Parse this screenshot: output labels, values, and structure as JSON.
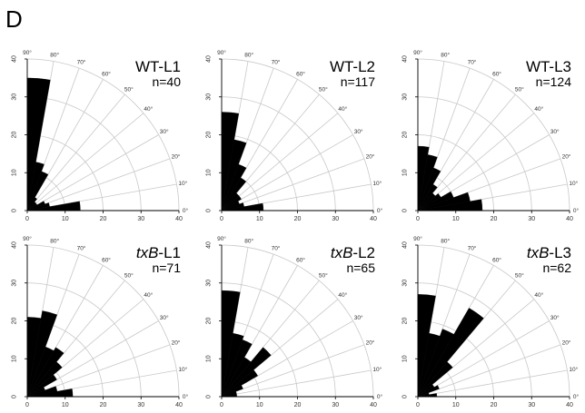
{
  "figure_label": "D",
  "colors": {
    "bars": "#000000",
    "grid": "#c8c8c8",
    "axis": "#000000"
  },
  "chart_data": [
    {
      "type": "rose",
      "title_prefix": "",
      "title_suffix": "WT-L1",
      "n_label": "n=40",
      "angle_bin_deg": 10,
      "angle_ticks": [
        "0°",
        "10°",
        "20°",
        "30°",
        "40°",
        "50°",
        "60°",
        "70°",
        "80°",
        "90°"
      ],
      "radial_ticks": [
        "0",
        "10",
        "20",
        "30",
        "40"
      ],
      "rlim": [
        0,
        40
      ],
      "bins": [
        {
          "from": 0,
          "to": 10,
          "value": 14
        },
        {
          "from": 10,
          "to": 20,
          "value": 6
        },
        {
          "from": 20,
          "to": 30,
          "value": 5
        },
        {
          "from": 30,
          "to": 40,
          "value": 3
        },
        {
          "from": 40,
          "to": 50,
          "value": 3
        },
        {
          "from": 50,
          "to": 60,
          "value": 4
        },
        {
          "from": 60,
          "to": 70,
          "value": 11
        },
        {
          "from": 70,
          "to": 80,
          "value": 13
        },
        {
          "from": 80,
          "to": 90,
          "value": 35
        }
      ]
    },
    {
      "type": "rose",
      "title_prefix": "",
      "title_suffix": "WT-L2",
      "n_label": "n=117",
      "angle_bin_deg": 10,
      "angle_ticks": [
        "0°",
        "10°",
        "20°",
        "30°",
        "40°",
        "50°",
        "60°",
        "70°",
        "80°",
        "90°"
      ],
      "radial_ticks": [
        "0",
        "10",
        "20",
        "30",
        "40"
      ],
      "rlim": [
        0,
        40
      ],
      "bins": [
        {
          "from": 0,
          "to": 10,
          "value": 11
        },
        {
          "from": 10,
          "to": 20,
          "value": 6
        },
        {
          "from": 20,
          "to": 30,
          "value": 5
        },
        {
          "from": 30,
          "to": 40,
          "value": 6
        },
        {
          "from": 40,
          "to": 50,
          "value": 6
        },
        {
          "from": 50,
          "to": 60,
          "value": 10
        },
        {
          "from": 60,
          "to": 70,
          "value": 13
        },
        {
          "from": 70,
          "to": 80,
          "value": 19
        },
        {
          "from": 80,
          "to": 90,
          "value": 26
        }
      ]
    },
    {
      "type": "rose",
      "title_prefix": "",
      "title_suffix": "WT-L3",
      "n_label": "n=124",
      "angle_bin_deg": 10,
      "angle_ticks": [
        "0°",
        "10°",
        "20°",
        "30°",
        "40°",
        "50°",
        "60°",
        "70°",
        "80°",
        "90°"
      ],
      "radial_ticks": [
        "0",
        "10",
        "20",
        "30",
        "40"
      ],
      "rlim": [
        0,
        40
      ],
      "bins": [
        {
          "from": 0,
          "to": 10,
          "value": 17
        },
        {
          "from": 10,
          "to": 20,
          "value": 14
        },
        {
          "from": 20,
          "to": 30,
          "value": 10
        },
        {
          "from": 30,
          "to": 40,
          "value": 7
        },
        {
          "from": 40,
          "to": 50,
          "value": 6
        },
        {
          "from": 50,
          "to": 60,
          "value": 8
        },
        {
          "from": 60,
          "to": 70,
          "value": 12
        },
        {
          "from": 70,
          "to": 80,
          "value": 15
        },
        {
          "from": 80,
          "to": 90,
          "value": 17
        }
      ]
    },
    {
      "type": "rose",
      "title_prefix": "txB",
      "title_suffix": "-L1",
      "n_label": "n=71",
      "angle_bin_deg": 10,
      "angle_ticks": [
        "0°",
        "10°",
        "20°",
        "30°",
        "40°",
        "50°",
        "60°",
        "70°",
        "80°",
        "90°"
      ],
      "radial_ticks": [
        "0",
        "10",
        "20",
        "30",
        "40"
      ],
      "rlim": [
        0,
        40
      ],
      "bins": [
        {
          "from": 0,
          "to": 10,
          "value": 12
        },
        {
          "from": 10,
          "to": 20,
          "value": 8
        },
        {
          "from": 20,
          "to": 30,
          "value": 5
        },
        {
          "from": 30,
          "to": 40,
          "value": 9
        },
        {
          "from": 40,
          "to": 50,
          "value": 12
        },
        {
          "from": 50,
          "to": 60,
          "value": 15
        },
        {
          "from": 60,
          "to": 70,
          "value": 14
        },
        {
          "from": 70,
          "to": 80,
          "value": 23
        },
        {
          "from": 80,
          "to": 90,
          "value": 21
        }
      ]
    },
    {
      "type": "rose",
      "title_prefix": "txB",
      "title_suffix": "-L2",
      "n_label": "n=65",
      "angle_bin_deg": 10,
      "angle_ticks": [
        "0°",
        "10°",
        "20°",
        "30°",
        "40°",
        "50°",
        "60°",
        "70°",
        "80°",
        "90°"
      ],
      "radial_ticks": [
        "0",
        "10",
        "20",
        "30",
        "40"
      ],
      "rlim": [
        0,
        40
      ],
      "bins": [
        {
          "from": 0,
          "to": 10,
          "value": 4
        },
        {
          "from": 10,
          "to": 20,
          "value": 4
        },
        {
          "from": 20,
          "to": 30,
          "value": 6
        },
        {
          "from": 30,
          "to": 40,
          "value": 11
        },
        {
          "from": 40,
          "to": 50,
          "value": 17
        },
        {
          "from": 50,
          "to": 60,
          "value": 12
        },
        {
          "from": 60,
          "to": 70,
          "value": 16
        },
        {
          "from": 70,
          "to": 80,
          "value": 17
        },
        {
          "from": 80,
          "to": 90,
          "value": 28
        }
      ]
    },
    {
      "type": "rose",
      "title_prefix": "txB",
      "title_suffix": "-L3",
      "n_label": "n=62",
      "angle_bin_deg": 10,
      "angle_ticks": [
        "0°",
        "10°",
        "20°",
        "30°",
        "40°",
        "50°",
        "60°",
        "70°",
        "80°",
        "90°"
      ],
      "radial_ticks": [
        "0",
        "10",
        "20",
        "30",
        "40"
      ],
      "rlim": [
        0,
        40
      ],
      "bins": [
        {
          "from": 0,
          "to": 10,
          "value": 5
        },
        {
          "from": 10,
          "to": 20,
          "value": 3
        },
        {
          "from": 20,
          "to": 30,
          "value": 6
        },
        {
          "from": 30,
          "to": 40,
          "value": 5
        },
        {
          "from": 40,
          "to": 50,
          "value": 12
        },
        {
          "from": 50,
          "to": 60,
          "value": 27
        },
        {
          "from": 60,
          "to": 70,
          "value": 19
        },
        {
          "from": 70,
          "to": 80,
          "value": 17
        },
        {
          "from": 80,
          "to": 90,
          "value": 27
        }
      ]
    }
  ]
}
